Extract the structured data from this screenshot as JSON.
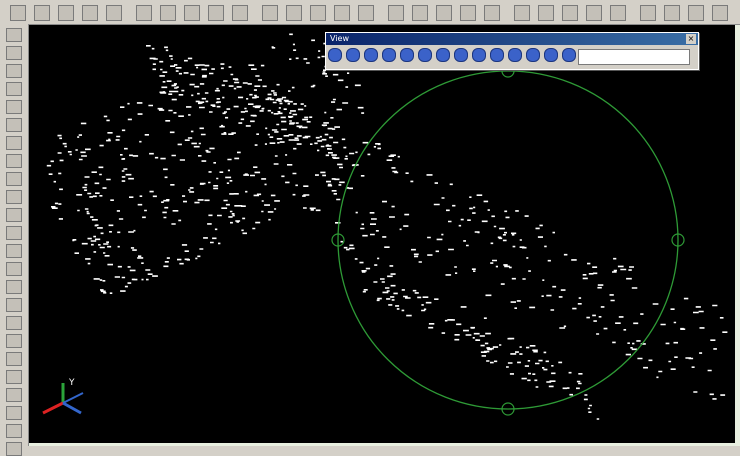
{
  "floating_toolbar": {
    "title": "View"
  },
  "ucs_icon": {
    "label": "Y"
  }
}
